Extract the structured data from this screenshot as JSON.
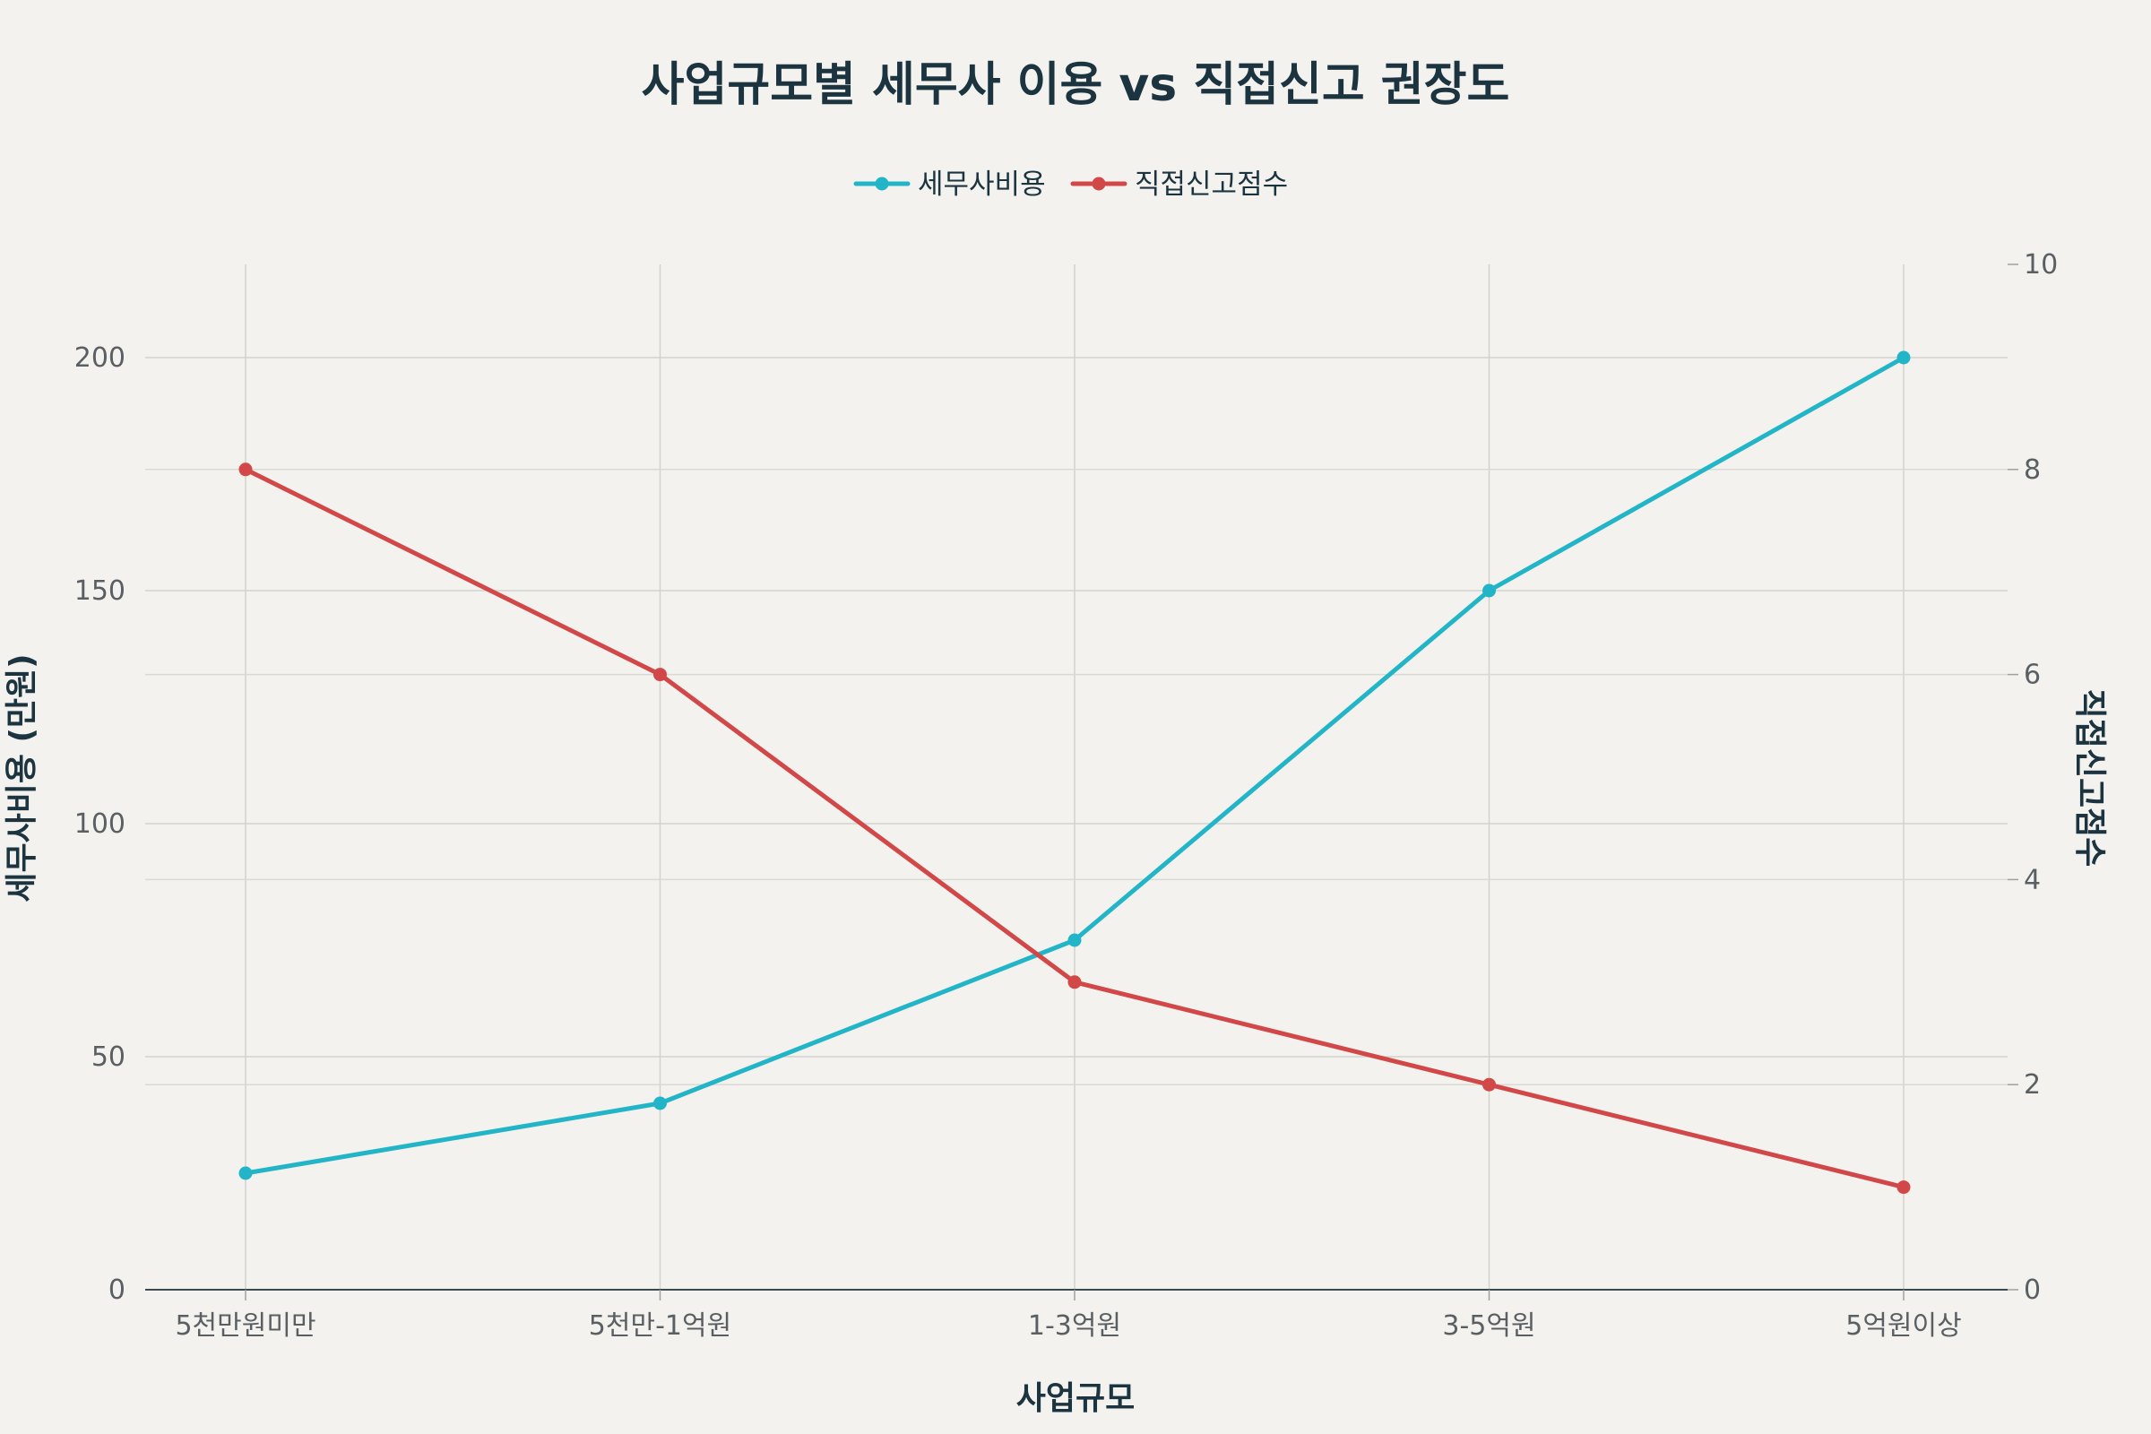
{
  "chart_data": {
    "type": "line",
    "title": "사업규모별 세무사 이용 vs 직접신고 권장도",
    "xlabel": "사업규모",
    "ylabel": "세무사비용 (만원)",
    "y2label": "직접신고점수",
    "categories": [
      "5천만원미만",
      "5천만-1억원",
      "1-3억원",
      "3-5억원",
      "5억원이상"
    ],
    "ylim": [
      0,
      220
    ],
    "y2lim": [
      0,
      10
    ],
    "yticks": [
      0,
      50,
      100,
      150,
      200
    ],
    "y2ticks": [
      0,
      2,
      4,
      6,
      8,
      10
    ],
    "grid": true,
    "legend_position": "top-center",
    "series": [
      {
        "name": "세무사비용",
        "axis": "left",
        "color": "#22b5c8",
        "values": [
          25,
          40,
          75,
          150,
          200
        ]
      },
      {
        "name": "직접신고점수",
        "axis": "right",
        "color": "#d24848",
        "values": [
          8,
          6,
          3,
          2,
          1
        ]
      }
    ]
  }
}
